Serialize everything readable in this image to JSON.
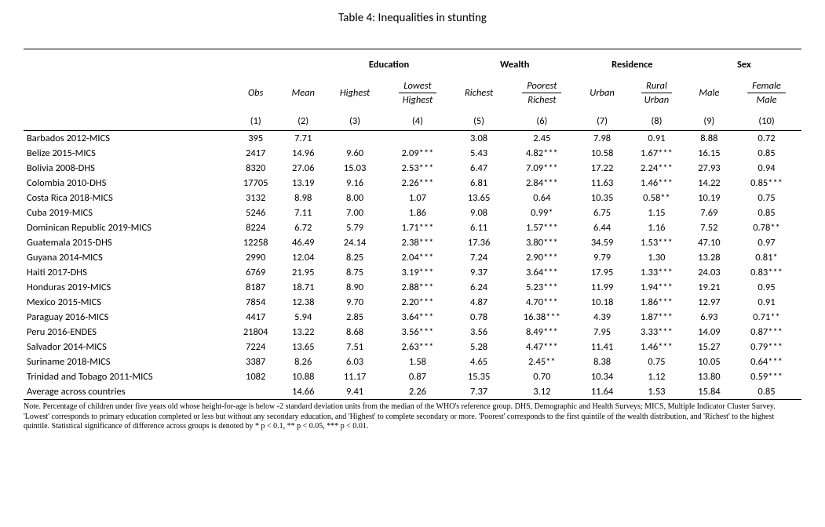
{
  "title": "Table 4: Inequalities in stunting",
  "groupHeaders": {
    "education": "Education",
    "wealth": "Wealth",
    "residence": "Residence",
    "sex": "Sex"
  },
  "subHeaders": {
    "obs": "Obs",
    "mean": "Mean",
    "highest": "Highest",
    "lowestTop": "Lowest",
    "lowestBot": "Highest",
    "richest": "Richest",
    "poorestTop": "Poorest",
    "poorestBot": "Richest",
    "urban": "Urban",
    "ruralTop": "Rural",
    "ruralBot": "Urban",
    "male": "Male",
    "femaleTop": "Female",
    "femaleBot": "Male"
  },
  "colNums": {
    "c1": "(1)",
    "c2": "(2)",
    "c3": "(3)",
    "c4": "(4)",
    "c5": "(5)",
    "c6": "(6)",
    "c7": "(7)",
    "c8": "(8)",
    "c9": "(9)",
    "c10": "(10)"
  },
  "rows": [
    {
      "label": "Barbados 2012-MICS",
      "obs": "395",
      "mean": "7.71",
      "edHigh": "",
      "edRatio": "",
      "wRich": "3.08",
      "wRatio": "2.45",
      "rUrban": "7.98",
      "rRatio": "0.91",
      "sMale": "8.88",
      "sRatio": "0.72"
    },
    {
      "label": "Belize 2015-MICS",
      "obs": "2417",
      "mean": "14.96",
      "edHigh": "9.60",
      "edRatio": "2.09***",
      "wRich": "5.43",
      "wRatio": "4.82***",
      "rUrban": "10.58",
      "rRatio": "1.67***",
      "sMale": "16.15",
      "sRatio": "0.85"
    },
    {
      "label": "Bolivia 2008-DHS",
      "obs": "8320",
      "mean": "27.06",
      "edHigh": "15.03",
      "edRatio": "2.53***",
      "wRich": "6.47",
      "wRatio": "7.09***",
      "rUrban": "17.22",
      "rRatio": "2.24***",
      "sMale": "27.93",
      "sRatio": "0.94"
    },
    {
      "label": "Colombia 2010-DHS",
      "obs": "17705",
      "mean": "13.19",
      "edHigh": "9.16",
      "edRatio": "2.26***",
      "wRich": "6.81",
      "wRatio": "2.84***",
      "rUrban": "11.63",
      "rRatio": "1.46***",
      "sMale": "14.22",
      "sRatio": "0.85***"
    },
    {
      "label": "Costa Rica 2018-MICS",
      "obs": "3132",
      "mean": "8.98",
      "edHigh": "8.00",
      "edRatio": "1.07",
      "wRich": "13.65",
      "wRatio": "0.64",
      "rUrban": "10.35",
      "rRatio": "0.58**",
      "sMale": "10.19",
      "sRatio": "0.75"
    },
    {
      "label": "Cuba 2019-MICS",
      "obs": "5246",
      "mean": "7.11",
      "edHigh": "7.00",
      "edRatio": "1.86",
      "wRich": "9.08",
      "wRatio": "0.99*",
      "rUrban": "6.75",
      "rRatio": "1.15",
      "sMale": "7.69",
      "sRatio": "0.85"
    },
    {
      "label": "Dominican Republic 2019-MICS",
      "obs": "8224",
      "mean": "6.72",
      "edHigh": "5.79",
      "edRatio": "1.71***",
      "wRich": "6.11",
      "wRatio": "1.57***",
      "rUrban": "6.44",
      "rRatio": "1.16",
      "sMale": "7.52",
      "sRatio": "0.78**"
    },
    {
      "label": "Guatemala 2015-DHS",
      "obs": "12258",
      "mean": "46.49",
      "edHigh": "24.14",
      "edRatio": "2.38***",
      "wRich": "17.36",
      "wRatio": "3.80***",
      "rUrban": "34.59",
      "rRatio": "1.53***",
      "sMale": "47.10",
      "sRatio": "0.97"
    },
    {
      "label": "Guyana 2014-MICS",
      "obs": "2990",
      "mean": "12.04",
      "edHigh": "8.25",
      "edRatio": "2.04***",
      "wRich": "7.24",
      "wRatio": "2.90***",
      "rUrban": "9.79",
      "rRatio": "1.30",
      "sMale": "13.28",
      "sRatio": "0.81*"
    },
    {
      "label": "Haiti 2017-DHS",
      "obs": "6769",
      "mean": "21.95",
      "edHigh": "8.75",
      "edRatio": "3.19***",
      "wRich": "9.37",
      "wRatio": "3.64***",
      "rUrban": "17.95",
      "rRatio": "1.33***",
      "sMale": "24.03",
      "sRatio": "0.83***"
    },
    {
      "label": "Honduras 2019-MICS",
      "obs": "8187",
      "mean": "18.71",
      "edHigh": "8.90",
      "edRatio": "2.88***",
      "wRich": "6.24",
      "wRatio": "5.23***",
      "rUrban": "11.99",
      "rRatio": "1.94***",
      "sMale": "19.21",
      "sRatio": "0.95"
    },
    {
      "label": "Mexico 2015-MICS",
      "obs": "7854",
      "mean": "12.38",
      "edHigh": "9.70",
      "edRatio": "2.20***",
      "wRich": "4.87",
      "wRatio": "4.70***",
      "rUrban": "10.18",
      "rRatio": "1.86***",
      "sMale": "12.97",
      "sRatio": "0.91"
    },
    {
      "label": "Paraguay 2016-MICS",
      "obs": "4417",
      "mean": "5.94",
      "edHigh": "2.85",
      "edRatio": "3.64***",
      "wRich": "0.78",
      "wRatio": "16.38***",
      "rUrban": "4.39",
      "rRatio": "1.87***",
      "sMale": "6.93",
      "sRatio": "0.71**"
    },
    {
      "label": "Peru 2016-ENDES",
      "obs": "21804",
      "mean": "13.22",
      "edHigh": "8.68",
      "edRatio": "3.56***",
      "wRich": "3.56",
      "wRatio": "8.49***",
      "rUrban": "7.95",
      "rRatio": "3.33***",
      "sMale": "14.09",
      "sRatio": "0.87***"
    },
    {
      "label": "Salvador 2014-MICS",
      "obs": "7224",
      "mean": "13.65",
      "edHigh": "7.51",
      "edRatio": "2.63***",
      "wRich": "5.28",
      "wRatio": "4.47***",
      "rUrban": "11.41",
      "rRatio": "1.46***",
      "sMale": "15.27",
      "sRatio": "0.79***"
    },
    {
      "label": "Suriname 2018-MICS",
      "obs": "3387",
      "mean": "8.26",
      "edHigh": "6.03",
      "edRatio": "1.58",
      "wRich": "4.65",
      "wRatio": "2.45**",
      "rUrban": "8.38",
      "rRatio": "0.75",
      "sMale": "10.05",
      "sRatio": "0.64***"
    },
    {
      "label": "Trinidad and Tobago 2011-MICS",
      "obs": "1082",
      "mean": "10.88",
      "edHigh": "11.17",
      "edRatio": "0.87",
      "wRich": "15.35",
      "wRatio": "0.70",
      "rUrban": "10.34",
      "rRatio": "1.12",
      "sMale": "13.80",
      "sRatio": "0.59***"
    },
    {
      "label": "Average across countries",
      "obs": "",
      "mean": "14.66",
      "edHigh": "9.41",
      "edRatio": "2.26",
      "wRich": "7.37",
      "wRatio": "3.12",
      "rUrban": "11.64",
      "rRatio": "1.53",
      "sMale": "15.84",
      "sRatio": "0.85"
    }
  ],
  "note": "Note. Percentage of children under five years old whose height-for-age is below -2 standard deviation units from the median of the WHO's reference group. DHS, Demographic and Health Surveys; MICS, Multiple Indicator Cluster Survey. 'Lowest' corresponds to primary education completed or less but without any secondary education, and 'Highest' to complete secondary or more. 'Poorest' corresponds to the first quintile of the wealth distribution, and 'Richest' to the highest quintile. Statistical significance of difference across groups is denoted by * p < 0.1, ** p < 0.05, *** p < 0.01."
}
